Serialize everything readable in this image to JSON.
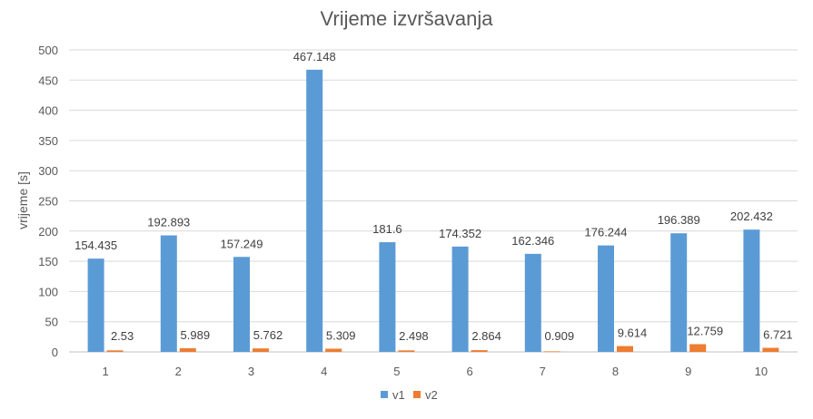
{
  "chart_data": {
    "type": "bar",
    "title": "Vrijeme izvršavanja",
    "xlabel": "",
    "ylabel": "vrijeme [s]",
    "categories": [
      "1",
      "2",
      "3",
      "4",
      "5",
      "6",
      "7",
      "8",
      "9",
      "10"
    ],
    "series": [
      {
        "name": "v1",
        "values": [
          154.435,
          192.893,
          157.249,
          467.148,
          181.6,
          174.352,
          162.346,
          176.244,
          196.389,
          202.432
        ],
        "color": "#5B9BD5"
      },
      {
        "name": "v2",
        "values": [
          2.53,
          5.989,
          5.762,
          5.309,
          2.498,
          2.864,
          0.909,
          9.614,
          12.759,
          6.721
        ],
        "color": "#ED7D31"
      }
    ],
    "ylim": [
      0,
      500
    ],
    "yticks": [
      0,
      50,
      100,
      150,
      200,
      250,
      300,
      350,
      400,
      450,
      500
    ],
    "grid": true,
    "legend_position": "bottom"
  }
}
